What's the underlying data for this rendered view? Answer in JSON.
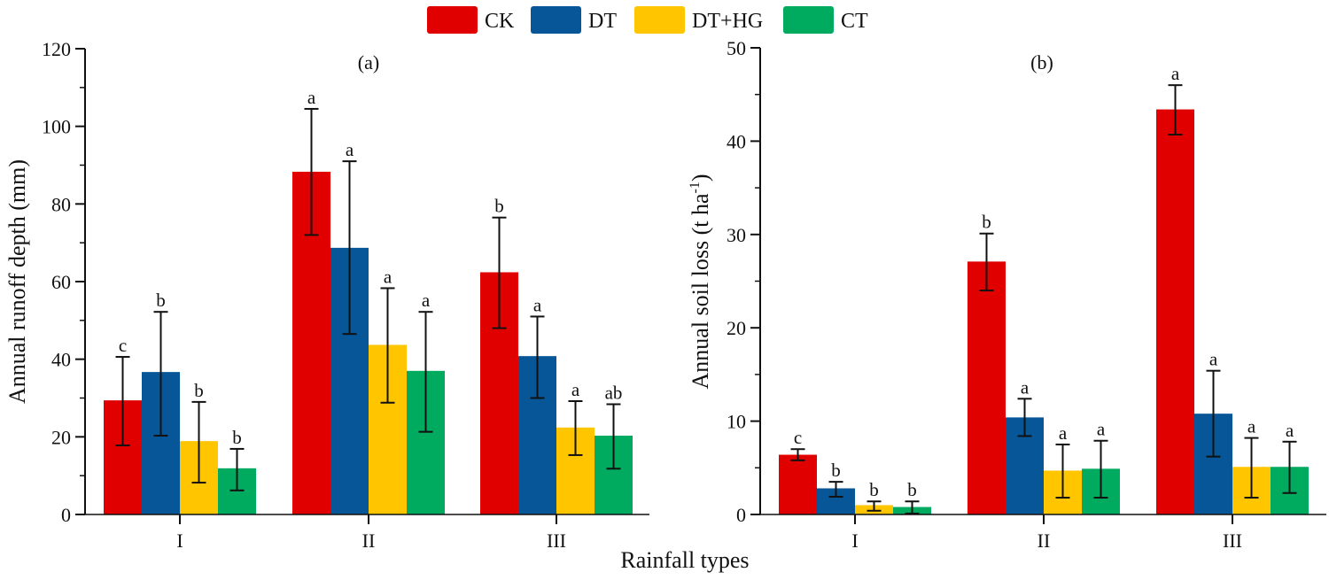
{
  "legend": [
    {
      "name": "CK",
      "color": "#e00000"
    },
    {
      "name": "DT",
      "color": "#065698"
    },
    {
      "name": "DT+HG",
      "color": "#ffc600"
    },
    {
      "name": "CT",
      "color": "#00aa5f"
    }
  ],
  "shared_xlabel": "Rainfall types",
  "chart_data": [
    {
      "type": "bar",
      "panel": "(a)",
      "title": "(a)",
      "xlabel": "Rainfall types",
      "ylabel": "Annual runoff depth (mm)",
      "ylim": [
        0,
        120
      ],
      "yticks": [
        0,
        20,
        40,
        60,
        80,
        100,
        120
      ],
      "ytick_labels": [
        "0",
        "20",
        "40",
        "60",
        "80",
        "100",
        "120"
      ],
      "minor_yticks": [
        10,
        30,
        50,
        70,
        90,
        110
      ],
      "categories": [
        "I",
        "II",
        "III"
      ],
      "series": [
        {
          "name": "CK",
          "values": [
            29.4,
            88.3,
            62.4
          ],
          "err_low": [
            17.8,
            72.0,
            48.0
          ],
          "err_high": [
            40.6,
            104.5,
            76.5
          ],
          "sig": [
            "c",
            "a",
            "b"
          ]
        },
        {
          "name": "DT",
          "values": [
            36.7,
            68.7,
            40.8
          ],
          "err_low": [
            20.3,
            46.5,
            30.0
          ],
          "err_high": [
            52.2,
            91.0,
            51.0
          ],
          "sig": [
            "b",
            "a",
            "a"
          ]
        },
        {
          "name": "DT+HG",
          "values": [
            18.9,
            43.7,
            22.4
          ],
          "err_low": [
            8.2,
            28.8,
            15.3
          ],
          "err_high": [
            29.0,
            58.3,
            29.2
          ],
          "sig": [
            "b",
            "a",
            "a"
          ]
        },
        {
          "name": "CT",
          "values": [
            11.9,
            37.0,
            20.3
          ],
          "err_low": [
            6.2,
            21.3,
            11.8
          ],
          "err_high": [
            16.9,
            52.2,
            28.4
          ],
          "sig": [
            "b",
            "a",
            "ab"
          ]
        }
      ],
      "grid": false,
      "legend_position": "top-center"
    },
    {
      "type": "bar",
      "panel": "(b)",
      "title": "(b)",
      "xlabel": "Rainfall types",
      "ylabel": "Annual soil loss (t ha",
      "ylabel_sup": "-1",
      "ylabel_end": ")",
      "ylim": [
        0,
        50
      ],
      "yticks": [
        0,
        10,
        20,
        30,
        40,
        50
      ],
      "ytick_labels": [
        "0",
        "10",
        "20",
        "30",
        "40",
        "50"
      ],
      "minor_yticks": [
        5,
        15,
        25,
        35,
        45
      ],
      "categories": [
        "I",
        "II",
        "III"
      ],
      "series": [
        {
          "name": "CK",
          "values": [
            6.4,
            27.1,
            43.4
          ],
          "err_low": [
            5.8,
            24.0,
            40.7
          ],
          "err_high": [
            7.0,
            30.1,
            46.0
          ],
          "sig": [
            "c",
            "b",
            "a"
          ]
        },
        {
          "name": "DT",
          "values": [
            2.8,
            10.4,
            10.8
          ],
          "err_low": [
            1.9,
            8.4,
            6.2
          ],
          "err_high": [
            3.5,
            12.4,
            15.4
          ],
          "sig": [
            "b",
            "a",
            "a"
          ]
        },
        {
          "name": "DT+HG",
          "values": [
            1.0,
            4.7,
            5.1
          ],
          "err_low": [
            0.4,
            1.8,
            1.8
          ],
          "err_high": [
            1.4,
            7.5,
            8.2
          ],
          "sig": [
            "b",
            "a",
            "a"
          ]
        },
        {
          "name": "CT",
          "values": [
            0.8,
            4.9,
            5.1
          ],
          "err_low": [
            0.1,
            1.8,
            2.3
          ],
          "err_high": [
            1.4,
            7.9,
            7.8
          ],
          "sig": [
            "b",
            "a",
            "a"
          ]
        }
      ],
      "grid": false,
      "legend_position": "top-center"
    }
  ]
}
